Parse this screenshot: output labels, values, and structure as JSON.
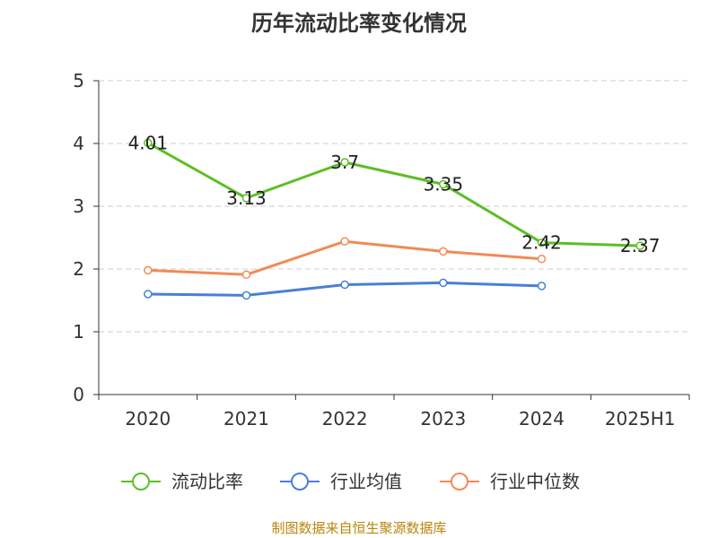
{
  "chart_data": {
    "type": "line",
    "title": "历年流动比率变化情况",
    "categories": [
      "2020",
      "2021",
      "2022",
      "2023",
      "2024",
      "2025H1"
    ],
    "ylim": [
      0,
      5
    ],
    "yticks": [
      "0",
      "1",
      "2",
      "3",
      "4",
      "5"
    ],
    "grid": true,
    "legend_position": "bottom",
    "series": [
      {
        "name": "流动比率",
        "color": "#5cbf25",
        "values": [
          4.01,
          3.13,
          3.7,
          3.35,
          2.42,
          2.37
        ],
        "labels": [
          "4.01",
          "3.13",
          "3.7",
          "3.35",
          "2.42",
          "2.37"
        ]
      },
      {
        "name": "行业均值",
        "color": "#4a7fd6",
        "values": [
          1.6,
          1.58,
          1.75,
          1.78,
          1.73,
          null
        ]
      },
      {
        "name": "行业中位数",
        "color": "#f28a56",
        "values": [
          1.98,
          1.91,
          2.44,
          2.28,
          2.16,
          null
        ]
      }
    ]
  },
  "footer": {
    "source": "制图数据来自恒生聚源数据库"
  }
}
